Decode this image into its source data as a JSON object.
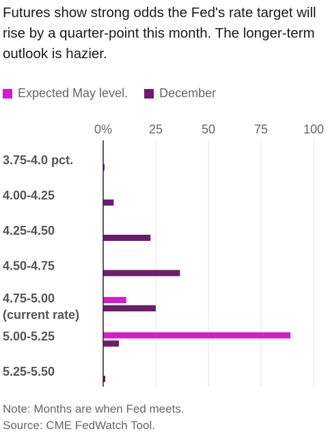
{
  "title": "Futures show strong odds the Fed's rate target will rise by a quarter-point this month. The longer-term outlook is hazier.",
  "note": "Note: Months are when Fed meets.",
  "source": "Source: CME FedWatch Tool.",
  "colors": {
    "may": "#d21ec9",
    "december": "#6b1e6b",
    "axis": "#222222"
  },
  "chart_data": {
    "type": "bar",
    "orientation": "horizontal",
    "categories": [
      [
        "3.75-4.0 pct."
      ],
      [
        "4.00-4.25"
      ],
      [
        "4.25-4.50"
      ],
      [
        "4.50-4.75"
      ],
      [
        "4.75-5.00",
        "(current rate)"
      ],
      [
        "5.00-5.25"
      ],
      [
        "5.25-5.50"
      ]
    ],
    "series": [
      {
        "name": "Expected May level.",
        "values": [
          0,
          0,
          0,
          0,
          11,
          89,
          0
        ]
      },
      {
        "name": "December",
        "values": [
          0.5,
          5,
          22.5,
          36.5,
          25,
          7.5,
          1
        ]
      }
    ],
    "xlim": [
      0,
      100
    ],
    "xticks": [
      0,
      25,
      50,
      75,
      100
    ],
    "tick_labels": [
      "0%",
      "25",
      "50",
      "75",
      "100"
    ],
    "grid": true,
    "legend_position": "top-left"
  }
}
